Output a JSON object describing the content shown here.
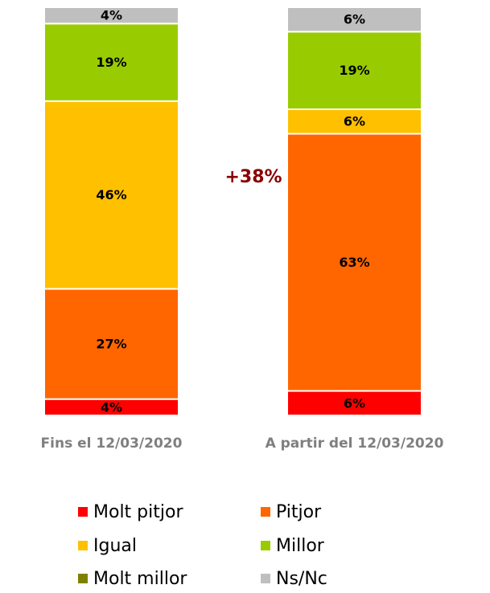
{
  "chart_data": {
    "type": "stacked_bar",
    "categories": [
      "Fins el 12/03/2020",
      "A partir del 12/03/2020"
    ],
    "series": [
      {
        "name": "Molt pitjor",
        "color": "#ff0000",
        "values": [
          4,
          6
        ],
        "value_labels": [
          "4%",
          "6%"
        ]
      },
      {
        "name": "Pitjor",
        "color": "#ff6600",
        "values": [
          27,
          63
        ],
        "value_labels": [
          "27%",
          "63%"
        ]
      },
      {
        "name": "Igual",
        "color": "#ffc000",
        "values": [
          46,
          6
        ],
        "value_labels": [
          "46%",
          "6%"
        ]
      },
      {
        "name": "Millor",
        "color": "#99cc00",
        "values": [
          19,
          19
        ],
        "value_labels": [
          "19%",
          "19%"
        ]
      },
      {
        "name": "Molt millor",
        "color": "#808000",
        "values": [
          0,
          0
        ],
        "value_labels": [
          null,
          null
        ]
      },
      {
        "name": "Ns/Nc",
        "color": "#bfbfbf",
        "values": [
          4,
          6
        ],
        "value_labels": [
          "4%",
          "6%"
        ]
      }
    ],
    "annotation": "+38%"
  }
}
